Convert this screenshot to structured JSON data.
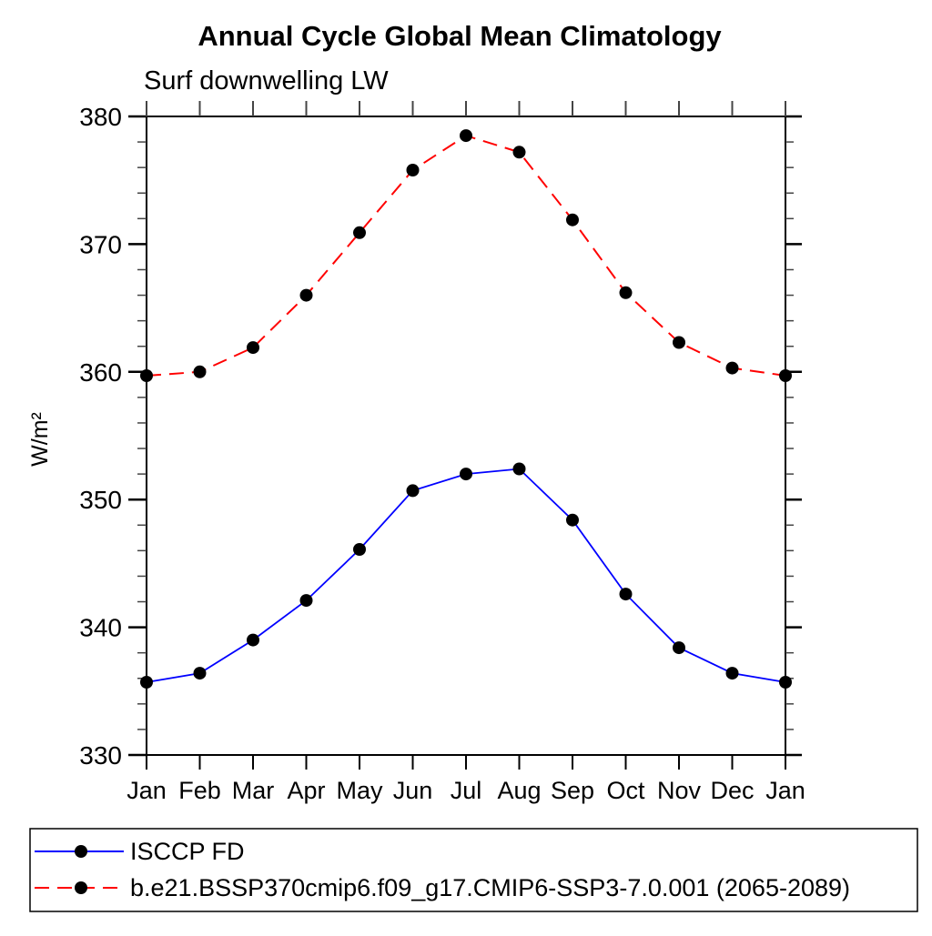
{
  "header": {
    "title": "Annual Cycle Global Mean Climatology",
    "subtitle": "Surf downwelling LW"
  },
  "chart_data": {
    "type": "line",
    "title": "Annual Cycle Global Mean Climatology",
    "subtitle": "Surf downwelling LW",
    "xlabel": "",
    "ylabel": "W/m²",
    "x_categories": [
      "Jan",
      "Feb",
      "Mar",
      "Apr",
      "May",
      "Jun",
      "Jul",
      "Aug",
      "Sep",
      "Oct",
      "Nov",
      "Dec",
      "Jan"
    ],
    "ylim": [
      330,
      380
    ],
    "y_major_ticks": [
      330,
      340,
      350,
      360,
      370,
      380
    ],
    "y_minor_step": 2,
    "grid": false,
    "legend_position": "bottom",
    "frame_color": "#000000",
    "marker_color": "#000000",
    "series": [
      {
        "name": "ISCCP FD",
        "color": "#0000ff",
        "line_style": "solid",
        "marker": "circle",
        "values": [
          335.7,
          336.4,
          339.0,
          342.1,
          346.1,
          350.7,
          352.0,
          352.4,
          348.4,
          342.6,
          338.4,
          336.4,
          335.7
        ]
      },
      {
        "name": "b.e21.BSSP370cmip6.f09_g17.CMIP6-SSP3-7.0.001 (2065-2089)",
        "color": "#ff0000",
        "line_style": "dashed",
        "marker": "circle",
        "values": [
          359.7,
          360.0,
          361.9,
          366.0,
          370.9,
          375.8,
          378.5,
          377.2,
          371.9,
          366.2,
          362.3,
          360.3,
          359.7
        ]
      }
    ]
  }
}
